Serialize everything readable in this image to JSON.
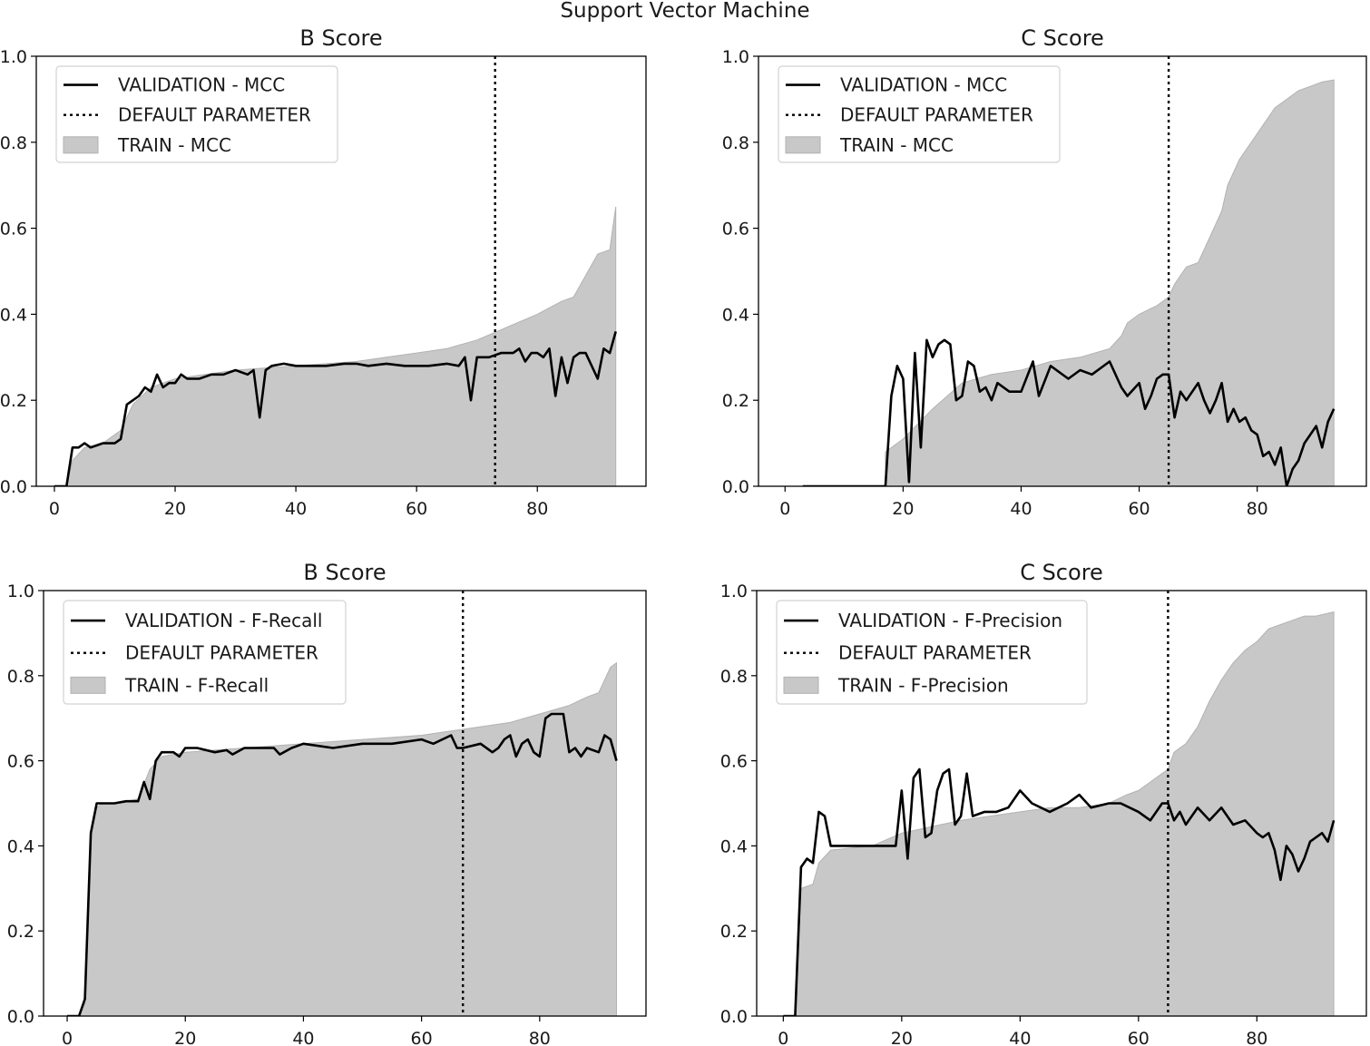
{
  "figure_title": "Support Vector Machine",
  "chart_data": [
    {
      "type": "line",
      "title": "B Score",
      "xlabel": "",
      "ylabel": "",
      "xlim": [
        -3,
        98
      ],
      "ylim": [
        0.0,
        1.0
      ],
      "xticks": [
        "0",
        "20",
        "40",
        "60",
        "80"
      ],
      "xtick_values": [
        0,
        20,
        40,
        60,
        80
      ],
      "yticks": [
        "0.0",
        "0.2",
        "0.4",
        "0.6",
        "0.8",
        "1.0"
      ],
      "ytick_values": [
        0.0,
        0.2,
        0.4,
        0.6,
        0.8,
        1.0
      ],
      "legend_position": "top-left",
      "legend": [
        "VALIDATION - MCC",
        "DEFAULT PARAMETER",
        "TRAIN - MCC"
      ],
      "default_parameter_x": 73,
      "series": [
        {
          "name": "TRAIN - MCC",
          "style": "fill",
          "color": "#c8c8c8",
          "x": [
            0,
            2,
            3,
            5,
            8,
            11,
            13,
            16,
            20,
            30,
            40,
            50,
            55,
            60,
            65,
            70,
            75,
            80,
            84,
            86,
            88,
            90,
            92,
            93,
            93
          ],
          "y": [
            0.0,
            0.0,
            0.06,
            0.09,
            0.1,
            0.13,
            0.19,
            0.23,
            0.25,
            0.27,
            0.28,
            0.29,
            0.3,
            0.31,
            0.32,
            0.34,
            0.37,
            0.4,
            0.43,
            0.44,
            0.49,
            0.54,
            0.55,
            0.65,
            0.0
          ]
        },
        {
          "name": "VALIDATION - MCC",
          "style": "solid",
          "color": "#000000",
          "x": [
            0,
            2,
            3,
            4,
            5,
            6,
            7,
            8,
            10,
            11,
            12,
            13,
            14,
            15,
            16,
            17,
            18,
            19,
            20,
            21,
            22,
            24,
            26,
            28,
            30,
            32,
            33,
            34,
            35,
            36,
            38,
            40,
            42,
            45,
            48,
            50,
            52,
            55,
            58,
            60,
            62,
            65,
            67,
            68,
            69,
            70,
            72,
            74,
            76,
            77,
            78,
            79,
            80,
            81,
            82,
            83,
            84,
            85,
            86,
            87,
            88,
            90,
            91,
            92,
            93
          ],
          "y": [
            0.0,
            0.0,
            0.09,
            0.09,
            0.1,
            0.09,
            0.095,
            0.1,
            0.1,
            0.11,
            0.19,
            0.2,
            0.21,
            0.23,
            0.22,
            0.26,
            0.23,
            0.24,
            0.24,
            0.26,
            0.25,
            0.25,
            0.26,
            0.26,
            0.27,
            0.26,
            0.27,
            0.16,
            0.27,
            0.28,
            0.285,
            0.28,
            0.28,
            0.28,
            0.285,
            0.285,
            0.28,
            0.285,
            0.28,
            0.28,
            0.28,
            0.285,
            0.28,
            0.3,
            0.2,
            0.3,
            0.3,
            0.31,
            0.31,
            0.32,
            0.29,
            0.31,
            0.31,
            0.3,
            0.32,
            0.21,
            0.3,
            0.24,
            0.3,
            0.31,
            0.31,
            0.25,
            0.32,
            0.31,
            0.36
          ]
        }
      ]
    },
    {
      "type": "line",
      "title": "C Score",
      "xlabel": "",
      "ylabel": "",
      "xlim": [
        -4.5,
        98.5
      ],
      "ylim": [
        0.0,
        1.0
      ],
      "xticks": [
        "0",
        "20",
        "40",
        "60",
        "80"
      ],
      "xtick_values": [
        0,
        20,
        40,
        60,
        80
      ],
      "yticks": [
        "0.0",
        "0.2",
        "0.4",
        "0.6",
        "0.8",
        "1.0"
      ],
      "ytick_values": [
        0.0,
        0.2,
        0.4,
        0.6,
        0.8,
        1.0
      ],
      "legend_position": "top-left",
      "legend": [
        "VALIDATION - MCC",
        "DEFAULT PARAMETER",
        "TRAIN - MCC"
      ],
      "default_parameter_x": 65,
      "series": [
        {
          "name": "TRAIN - MCC",
          "style": "fill",
          "color": "#c8c8c8",
          "x": [
            17,
            17,
            20,
            25,
            30,
            35,
            40,
            45,
            50,
            55,
            57,
            58,
            60,
            63,
            65,
            66,
            68,
            70,
            72,
            74,
            75,
            77,
            79,
            81,
            83,
            85,
            87,
            89,
            91,
            93,
            93
          ],
          "y": [
            0.0,
            0.08,
            0.11,
            0.18,
            0.24,
            0.26,
            0.27,
            0.29,
            0.3,
            0.32,
            0.35,
            0.38,
            0.4,
            0.42,
            0.44,
            0.47,
            0.51,
            0.52,
            0.58,
            0.64,
            0.7,
            0.76,
            0.8,
            0.84,
            0.88,
            0.9,
            0.92,
            0.93,
            0.94,
            0.945,
            0.0
          ]
        },
        {
          "name": "VALIDATION - MCC",
          "style": "solid",
          "color": "#000000",
          "x": [
            3,
            17,
            18,
            19,
            20,
            21,
            22,
            23,
            24,
            25,
            26,
            27,
            28,
            29,
            30,
            31,
            32,
            33,
            34,
            35,
            36,
            38,
            40,
            42,
            43,
            45,
            48,
            50,
            52,
            55,
            57,
            58,
            60,
            61,
            62,
            63,
            64,
            65,
            66,
            67,
            68,
            70,
            71,
            72,
            73,
            74,
            75,
            76,
            77,
            78,
            79,
            80,
            81,
            82,
            83,
            84,
            85,
            86,
            87,
            88,
            89,
            90,
            91,
            92,
            93
          ],
          "y": [
            0.0,
            0.0,
            0.21,
            0.28,
            0.25,
            0.01,
            0.31,
            0.09,
            0.34,
            0.3,
            0.33,
            0.34,
            0.33,
            0.2,
            0.21,
            0.29,
            0.28,
            0.22,
            0.23,
            0.2,
            0.24,
            0.22,
            0.22,
            0.29,
            0.21,
            0.28,
            0.25,
            0.27,
            0.26,
            0.29,
            0.23,
            0.21,
            0.24,
            0.18,
            0.21,
            0.25,
            0.26,
            0.26,
            0.16,
            0.22,
            0.2,
            0.24,
            0.2,
            0.17,
            0.2,
            0.24,
            0.15,
            0.18,
            0.15,
            0.16,
            0.13,
            0.12,
            0.07,
            0.08,
            0.05,
            0.09,
            0.0,
            0.04,
            0.06,
            0.1,
            0.12,
            0.14,
            0.09,
            0.15,
            0.18
          ]
        }
      ]
    },
    {
      "type": "line",
      "title": "B Score",
      "xlabel": "",
      "ylabel": "",
      "xlim": [
        -4,
        98
      ],
      "ylim": [
        0.0,
        1.0
      ],
      "xticks": [
        "0",
        "20",
        "40",
        "60",
        "80"
      ],
      "xtick_values": [
        0,
        20,
        40,
        60,
        80
      ],
      "yticks": [
        "0.0",
        "0.2",
        "0.4",
        "0.6",
        "0.8",
        "1.0"
      ],
      "ytick_values": [
        0.0,
        0.2,
        0.4,
        0.6,
        0.8,
        1.0
      ],
      "legend_position": "top-left",
      "legend": [
        "VALIDATION - F-Recall",
        "DEFAULT PARAMETER",
        "TRAIN - F-Recall"
      ],
      "default_parameter_x": 67,
      "series": [
        {
          "name": "TRAIN - F-Recall",
          "style": "fill",
          "color": "#c8c8c8",
          "x": [
            0,
            2,
            3,
            4,
            5,
            6,
            8,
            12,
            14,
            16,
            20,
            30,
            40,
            50,
            60,
            65,
            70,
            75,
            80,
            85,
            88,
            90,
            92,
            93,
            93
          ],
          "y": [
            0.0,
            0.0,
            0.03,
            0.43,
            0.49,
            0.5,
            0.5,
            0.51,
            0.58,
            0.61,
            0.62,
            0.63,
            0.64,
            0.65,
            0.66,
            0.67,
            0.68,
            0.69,
            0.71,
            0.73,
            0.75,
            0.76,
            0.82,
            0.83,
            0.0
          ]
        },
        {
          "name": "VALIDATION - F-Recall",
          "style": "solid",
          "color": "#000000",
          "x": [
            0,
            2,
            3,
            4,
            5,
            6,
            8,
            10,
            12,
            13,
            14,
            15,
            16,
            18,
            19,
            20,
            22,
            25,
            27,
            28,
            30,
            35,
            36,
            38,
            40,
            45,
            50,
            55,
            60,
            62,
            65,
            66,
            67,
            70,
            72,
            73,
            74,
            75,
            76,
            77,
            78,
            79,
            80,
            81,
            82,
            84,
            85,
            86,
            87,
            88,
            90,
            91,
            92,
            93
          ],
          "y": [
            0.0,
            0.0,
            0.04,
            0.43,
            0.5,
            0.5,
            0.5,
            0.505,
            0.505,
            0.55,
            0.51,
            0.6,
            0.62,
            0.62,
            0.61,
            0.63,
            0.63,
            0.62,
            0.625,
            0.615,
            0.63,
            0.63,
            0.615,
            0.63,
            0.64,
            0.63,
            0.64,
            0.64,
            0.65,
            0.64,
            0.66,
            0.63,
            0.63,
            0.64,
            0.62,
            0.63,
            0.65,
            0.66,
            0.61,
            0.64,
            0.65,
            0.62,
            0.61,
            0.7,
            0.71,
            0.71,
            0.62,
            0.63,
            0.61,
            0.63,
            0.62,
            0.66,
            0.65,
            0.6
          ]
        }
      ]
    },
    {
      "type": "line",
      "title": "C Score",
      "xlabel": "",
      "ylabel": "",
      "xlim": [
        -4.5,
        98.5
      ],
      "ylim": [
        0.0,
        1.0
      ],
      "xticks": [
        "0",
        "20",
        "40",
        "60",
        "80"
      ],
      "xtick_values": [
        0,
        20,
        40,
        60,
        80
      ],
      "yticks": [
        "0.0",
        "0.2",
        "0.4",
        "0.6",
        "0.8",
        "1.0"
      ],
      "ytick_values": [
        0.0,
        0.2,
        0.4,
        0.6,
        0.8,
        1.0
      ],
      "legend_position": "top-left",
      "legend": [
        "VALIDATION - F-Precision",
        "DEFAULT PARAMETER",
        "TRAIN - F-Precision"
      ],
      "default_parameter_x": 65,
      "series": [
        {
          "name": "TRAIN - F-Precision",
          "style": "fill",
          "color": "#c8c8c8",
          "x": [
            2,
            3,
            5,
            6,
            8,
            15,
            20,
            30,
            40,
            45,
            50,
            55,
            58,
            60,
            62,
            64,
            65,
            66,
            68,
            70,
            72,
            74,
            76,
            78,
            80,
            82,
            84,
            86,
            88,
            90,
            93,
            93
          ],
          "y": [
            0.0,
            0.3,
            0.31,
            0.36,
            0.39,
            0.4,
            0.43,
            0.46,
            0.48,
            0.49,
            0.49,
            0.5,
            0.52,
            0.53,
            0.55,
            0.57,
            0.58,
            0.62,
            0.64,
            0.68,
            0.74,
            0.79,
            0.83,
            0.86,
            0.88,
            0.91,
            0.92,
            0.93,
            0.94,
            0.94,
            0.95,
            0.0
          ]
        },
        {
          "name": "VALIDATION - F-Precision",
          "style": "solid",
          "color": "#000000",
          "x": [
            0,
            2,
            3,
            4,
            5,
            6,
            7,
            8,
            15,
            19,
            20,
            21,
            22,
            23,
            24,
            25,
            26,
            27,
            28,
            29,
            30,
            31,
            32,
            34,
            36,
            38,
            40,
            42,
            45,
            48,
            50,
            52,
            55,
            57,
            60,
            62,
            64,
            65,
            66,
            67,
            68,
            70,
            72,
            74,
            76,
            78,
            80,
            81,
            82,
            83,
            84,
            85,
            86,
            87,
            88,
            89,
            90,
            91,
            92,
            93
          ],
          "y": [
            0.0,
            0.0,
            0.35,
            0.37,
            0.36,
            0.48,
            0.47,
            0.4,
            0.4,
            0.4,
            0.53,
            0.37,
            0.56,
            0.58,
            0.42,
            0.43,
            0.53,
            0.57,
            0.58,
            0.45,
            0.47,
            0.57,
            0.47,
            0.48,
            0.48,
            0.49,
            0.53,
            0.5,
            0.48,
            0.5,
            0.52,
            0.49,
            0.5,
            0.5,
            0.48,
            0.46,
            0.5,
            0.5,
            0.46,
            0.48,
            0.45,
            0.49,
            0.46,
            0.49,
            0.45,
            0.46,
            0.43,
            0.42,
            0.43,
            0.39,
            0.32,
            0.4,
            0.38,
            0.34,
            0.37,
            0.41,
            0.42,
            0.43,
            0.41,
            0.46
          ]
        }
      ]
    }
  ]
}
